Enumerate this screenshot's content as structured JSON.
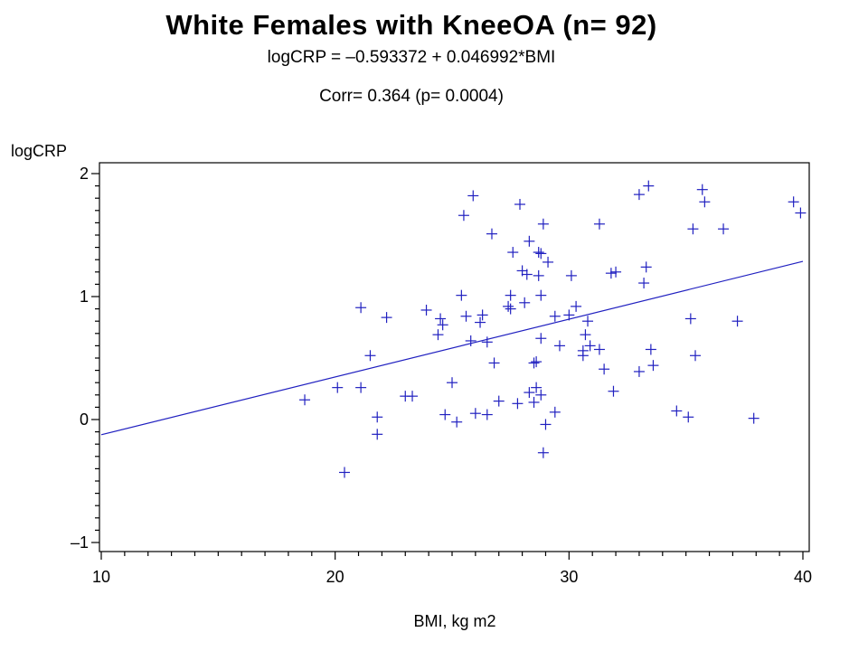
{
  "header": {
    "title": "White Females with KneeOA (n= 92)",
    "equation": "logCRP =  –0.593372  +  0.046992*BMI",
    "corr": "Corr= 0.364  (p= 0.0004)"
  },
  "chart_data": {
    "type": "scatter",
    "title": "White Females with KneeOA (n= 92)",
    "xlabel": "BMI, kg m2",
    "ylabel": "logCRP",
    "xlim": [
      10,
      40
    ],
    "ylim": [
      -1,
      2
    ],
    "x_ticks": [
      10,
      20,
      30,
      40
    ],
    "y_ticks": [
      -1,
      0,
      1,
      2
    ],
    "x_tick_labels": [
      "10",
      "20",
      "30",
      "40"
    ],
    "y_tick_labels": [
      "–1",
      "0",
      "1",
      "2"
    ],
    "marker_color": "#2020c0",
    "line_color": "#2020c0",
    "regression": {
      "intercept": -0.593372,
      "slope": 0.046992,
      "x_range": [
        10,
        40
      ]
    },
    "points": [
      [
        18.7,
        0.16
      ],
      [
        20.1,
        0.26
      ],
      [
        20.4,
        -0.43
      ],
      [
        21.1,
        0.91
      ],
      [
        21.1,
        0.26
      ],
      [
        21.5,
        0.52
      ],
      [
        21.8,
        0.02
      ],
      [
        21.8,
        -0.12
      ],
      [
        22.2,
        0.83
      ],
      [
        23.0,
        0.19
      ],
      [
        23.3,
        0.19
      ],
      [
        23.9,
        0.89
      ],
      [
        24.4,
        0.69
      ],
      [
        24.5,
        0.82
      ],
      [
        24.6,
        0.77
      ],
      [
        24.7,
        0.04
      ],
      [
        25.0,
        0.3
      ],
      [
        25.2,
        -0.02
      ],
      [
        25.4,
        1.01
      ],
      [
        25.6,
        0.84
      ],
      [
        25.5,
        1.66
      ],
      [
        25.9,
        1.82
      ],
      [
        25.8,
        0.64
      ],
      [
        26.0,
        0.05
      ],
      [
        26.2,
        0.79
      ],
      [
        26.3,
        0.85
      ],
      [
        26.5,
        0.04
      ],
      [
        26.5,
        0.63
      ],
      [
        26.7,
        1.51
      ],
      [
        26.8,
        0.46
      ],
      [
        27.0,
        0.15
      ],
      [
        27.4,
        0.92
      ],
      [
        27.5,
        0.9
      ],
      [
        27.5,
        1.01
      ],
      [
        27.6,
        1.36
      ],
      [
        27.8,
        0.13
      ],
      [
        27.9,
        1.75
      ],
      [
        28.0,
        1.21
      ],
      [
        28.1,
        0.95
      ],
      [
        28.2,
        1.18
      ],
      [
        28.3,
        0.22
      ],
      [
        28.3,
        1.45
      ],
      [
        28.5,
        0.14
      ],
      [
        28.5,
        0.46
      ],
      [
        28.6,
        0.47
      ],
      [
        28.6,
        0.26
      ],
      [
        28.7,
        1.17
      ],
      [
        28.7,
        1.36
      ],
      [
        28.8,
        1.35
      ],
      [
        28.8,
        0.2
      ],
      [
        28.8,
        0.66
      ],
      [
        28.8,
        1.01
      ],
      [
        28.9,
        1.59
      ],
      [
        28.9,
        -0.27
      ],
      [
        29.0,
        -0.04
      ],
      [
        29.1,
        1.28
      ],
      [
        29.4,
        0.06
      ],
      [
        29.4,
        0.84
      ],
      [
        29.6,
        0.6
      ],
      [
        30.0,
        0.85
      ],
      [
        30.1,
        1.17
      ],
      [
        30.3,
        0.92
      ],
      [
        30.6,
        0.52
      ],
      [
        30.6,
        0.56
      ],
      [
        30.7,
        0.69
      ],
      [
        30.8,
        0.8
      ],
      [
        30.9,
        0.6
      ],
      [
        31.3,
        0.57
      ],
      [
        31.3,
        1.59
      ],
      [
        31.5,
        0.41
      ],
      [
        31.8,
        1.19
      ],
      [
        31.9,
        0.23
      ],
      [
        32.0,
        1.2
      ],
      [
        33.0,
        1.83
      ],
      [
        33.0,
        0.39
      ],
      [
        33.2,
        1.11
      ],
      [
        33.3,
        1.24
      ],
      [
        33.4,
        1.9
      ],
      [
        33.5,
        0.57
      ],
      [
        33.6,
        0.44
      ],
      [
        34.6,
        0.07
      ],
      [
        35.1,
        0.02
      ],
      [
        35.2,
        0.82
      ],
      [
        35.3,
        1.55
      ],
      [
        35.4,
        0.52
      ],
      [
        35.7,
        1.87
      ],
      [
        35.8,
        1.77
      ],
      [
        36.6,
        1.55
      ],
      [
        37.2,
        0.8
      ],
      [
        37.9,
        0.01
      ],
      [
        39.6,
        1.77
      ],
      [
        39.9,
        1.68
      ]
    ]
  }
}
